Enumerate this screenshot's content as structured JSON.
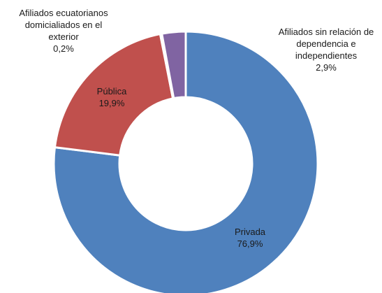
{
  "chart_data": {
    "type": "pie",
    "variant": "doughnut",
    "slices": [
      {
        "label": "Privada",
        "value": 76.9,
        "value_text": "76,9%",
        "color": "#4f81bd"
      },
      {
        "label": "Pública",
        "value": 19.9,
        "value_text": "19,9%",
        "color": "#c0504d"
      },
      {
        "label": "Afiliados ecuatorianos domiciliados en el exterior",
        "value": 0.2,
        "value_text": "0,2%",
        "color": "#9bbb59"
      },
      {
        "label": "Afiliados sin relación de dependencia e independientes",
        "value": 2.9,
        "value_text": "2,9%",
        "color": "#8064a2"
      }
    ],
    "label_lines": {
      "privada": "Privada",
      "publica": "Pública",
      "exterior": [
        "Afiliados ecuatorianos",
        "domicialiados en el",
        "exterior"
      ],
      "independientes": [
        "Afiliados sin relación de",
        "dependencia e",
        "independientes"
      ]
    },
    "start_angle_deg": 0,
    "direction": "clockwise",
    "legend": "none"
  }
}
